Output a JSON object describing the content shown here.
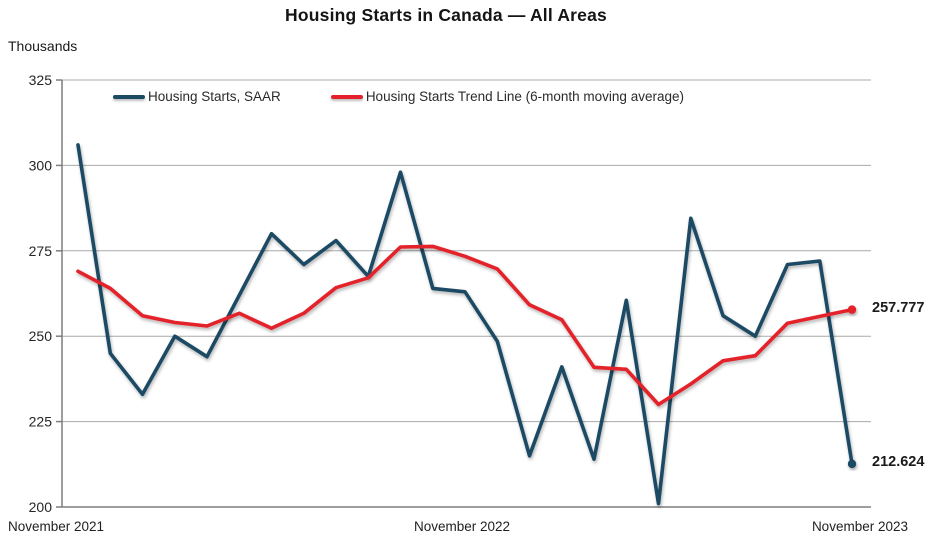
{
  "title": "Housing Starts in Canada — All Areas",
  "y_axis_unit": "Thousands",
  "legend": [
    {
      "label": "Housing Starts, SAAR",
      "color": "#1b4a63"
    },
    {
      "label": "Housing Starts Trend Line (6-month moving average)",
      "color": "#e4202c"
    }
  ],
  "chart_data": {
    "type": "line",
    "title": "Housing Starts in Canada — All Areas",
    "ylabel": "Thousands",
    "ylim": [
      200,
      325
    ],
    "y_ticks": [
      325,
      300,
      275,
      250,
      225,
      200
    ],
    "grid": true,
    "legend_position": "top",
    "x_axis_labels": [
      "November 2021",
      "November 2022",
      "November 2023"
    ],
    "x": [
      "Nov 2021",
      "Dec 2021",
      "Jan 2022",
      "Feb 2022",
      "Mar 2022",
      "Apr 2022",
      "May 2022",
      "Jun 2022",
      "Jul 2022",
      "Aug 2022",
      "Sep 2022",
      "Oct 2022",
      "Nov 2022",
      "Dec 2022",
      "Jan 2023",
      "Feb 2023",
      "Mar 2023",
      "Apr 2023",
      "May 2023",
      "Jun 2023",
      "Jul 2023",
      "Aug 2023",
      "Sep 2023",
      "Oct 2023",
      "Nov 2023"
    ],
    "series": [
      {
        "name": "Housing Starts, SAAR",
        "color": "#1b4a63",
        "values": [
          306,
          245,
          233,
          250,
          244,
          262,
          280,
          271,
          278,
          267.5,
          298,
          264,
          263,
          248.5,
          215,
          241,
          214,
          260.5,
          201,
          284.5,
          256,
          250,
          271,
          272,
          212.624
        ],
        "end_label": "212.624"
      },
      {
        "name": "Housing Starts Trend Line (6-month moving average)",
        "color": "#e4202c",
        "values": [
          269,
          264,
          256,
          254,
          253,
          256.7,
          252.3,
          256.7,
          264.2,
          267.1,
          276.1,
          276.3,
          273.4,
          269.7,
          259.2,
          254.8,
          240.9,
          240.3,
          230,
          236,
          242.8,
          244.3,
          253.8,
          255.8,
          257.777
        ],
        "end_label": "257.777"
      }
    ]
  }
}
